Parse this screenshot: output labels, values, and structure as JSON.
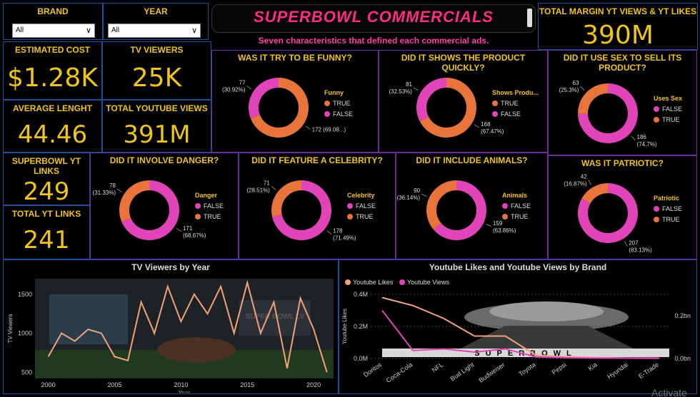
{
  "filters": {
    "brand": {
      "label": "BRAND",
      "value": "All"
    },
    "year": {
      "label": "YEAR",
      "value": "All"
    }
  },
  "title": "SUPERBOWL COMMERCIALS",
  "subtitle": "Seven characteristics that defined each commercial ads.",
  "kpis": {
    "estimated_cost": {
      "label": "ESTIMATED COST",
      "value": "$1.28K"
    },
    "tv_viewers": {
      "label": "TV VIEWERS",
      "value": "25K"
    },
    "average_length": {
      "label": "AVERAGE LENGHT",
      "value": "44.46"
    },
    "total_youtube_views": {
      "label": "TOTAL YOUTUBE VIEWS",
      "value": "391M"
    },
    "superbowl_yt_links": {
      "label": "SUPERBOWL YT LINKS",
      "value": "249"
    },
    "total_yt_links": {
      "label": "TOTAL YT LINKS",
      "value": "241"
    },
    "total_margin": {
      "label": "TOTAL MARGIN YT VIEWS & YT LIKES",
      "value": "390M"
    }
  },
  "colors": {
    "orange": "#e8743b",
    "pink": "#e044b8",
    "gold": "#f0c419",
    "blue": "#1e4f9c",
    "purple": "#6b2a9e"
  },
  "donuts": [
    {
      "id": "funny",
      "title": "WAS IT TRY TO BE FUNNY?",
      "legend_title": "Funny",
      "legend": [
        {
          "label": "TRUE",
          "color": "#e8743b"
        },
        {
          "label": "FALSE",
          "color": "#e044b8"
        }
      ],
      "slices": [
        {
          "value": 172,
          "color": "#e8743b",
          "label_count": "172 (69.08...)",
          "label_pct": ""
        },
        {
          "value": 77,
          "color": "#e044b8",
          "label_count": "77",
          "label_pct": "(30.92%)"
        }
      ]
    },
    {
      "id": "product",
      "title": "DID IT SHOWS THE PRODUCT QUICKLY?",
      "legend_title": "Shows Produ...",
      "legend": [
        {
          "label": "TRUE",
          "color": "#e8743b"
        },
        {
          "label": "FALSE",
          "color": "#e044b8"
        }
      ],
      "slices": [
        {
          "value": 168,
          "color": "#e8743b",
          "label_count": "168",
          "label_pct": "(67.47%)"
        },
        {
          "value": 81,
          "color": "#e044b8",
          "label_count": "81",
          "label_pct": "(32.53%)"
        }
      ]
    },
    {
      "id": "sex",
      "title": "DID IT USE SEX TO SELL ITS PRODUCT?",
      "legend_title": "Uses Sex",
      "legend": [
        {
          "label": "FALSE",
          "color": "#e044b8"
        },
        {
          "label": "TRUE",
          "color": "#e8743b"
        }
      ],
      "slices": [
        {
          "value": 186,
          "color": "#e044b8",
          "label_count": "186",
          "label_pct": "(74.7%)"
        },
        {
          "value": 63,
          "color": "#e8743b",
          "label_count": "63",
          "label_pct": "(25.3%)"
        }
      ]
    },
    {
      "id": "danger",
      "title": "DID IT INVOLVE DANGER?",
      "legend_title": "Danger",
      "legend": [
        {
          "label": "FALSE",
          "color": "#e044b8"
        },
        {
          "label": "TRUE",
          "color": "#e8743b"
        }
      ],
      "slices": [
        {
          "value": 171,
          "color": "#e044b8",
          "label_count": "171",
          "label_pct": "(68.67%)"
        },
        {
          "value": 78,
          "color": "#e8743b",
          "label_count": "78",
          "label_pct": "(31.33%)"
        }
      ]
    },
    {
      "id": "celebrity",
      "title": "DID IT FEATURE A CELEBRITY?",
      "legend_title": "Celebrity",
      "legend": [
        {
          "label": "FALSE",
          "color": "#e044b8"
        },
        {
          "label": "TRUE",
          "color": "#e8743b"
        }
      ],
      "slices": [
        {
          "value": 178,
          "color": "#e044b8",
          "label_count": "178",
          "label_pct": "(71.49%)"
        },
        {
          "value": 71,
          "color": "#e8743b",
          "label_count": "71",
          "label_pct": "(28.51%)"
        }
      ]
    },
    {
      "id": "animals",
      "title": "DID IT INCLUDE ANIMALS?",
      "legend_title": "Animals",
      "legend": [
        {
          "label": "FALSE",
          "color": "#e044b8"
        },
        {
          "label": "TRUE",
          "color": "#e8743b"
        }
      ],
      "slices": [
        {
          "value": 159,
          "color": "#e044b8",
          "label_count": "159",
          "label_pct": "(63.86%)"
        },
        {
          "value": 90,
          "color": "#e8743b",
          "label_count": "90",
          "label_pct": "(36.14%)"
        }
      ]
    },
    {
      "id": "patriotic",
      "title": "WAS IT PATRIOTIC?",
      "legend_title": "Patriotic",
      "legend": [
        {
          "label": "FALSE",
          "color": "#e044b8"
        },
        {
          "label": "TRUE",
          "color": "#e8743b"
        }
      ],
      "slices": [
        {
          "value": 207,
          "color": "#e044b8",
          "label_count": "207",
          "label_pct": "(83.13%)"
        },
        {
          "value": 42,
          "color": "#e8743b",
          "label_count": "42",
          "label_pct": "(16.87%)"
        }
      ]
    }
  ],
  "chart_data": [
    {
      "type": "line",
      "title": "TV Viewers by Year",
      "xlabel": "Year",
      "ylabel": "TV Viewers",
      "xlim": [
        1999,
        2021.5
      ],
      "ylim": [
        420,
        1700
      ],
      "xticks": [
        2000,
        2005,
        2010,
        2015,
        2020
      ],
      "yticks": [
        500,
        1000,
        1500
      ],
      "background_text": "SUPER BOWL LV",
      "series": [
        {
          "name": "TV Viewers",
          "color": "#f4a07a",
          "x": [
            2000,
            2001,
            2002,
            2003,
            2004,
            2005,
            2006,
            2007,
            2008,
            2009,
            2010,
            2011,
            2012,
            2013,
            2014,
            2015,
            2016,
            2017,
            2018,
            2019,
            2020,
            2021
          ],
          "y": [
            700,
            1000,
            900,
            1050,
            1000,
            700,
            650,
            1400,
            1000,
            1600,
            1150,
            1500,
            1250,
            1600,
            1000,
            1650,
            1000,
            1400,
            550,
            1450,
            1050,
            500
          ]
        }
      ]
    },
    {
      "type": "line",
      "title": "Youtube Likes and Youtube Views by Brand",
      "ylabel": "Youtube Likes",
      "categories": [
        "Doritos",
        "Coca-Cola",
        "NFL",
        "Bud Light",
        "Budweiser",
        "Toyota",
        "Pepsi",
        "Kia",
        "Hyundai",
        "E-Trade"
      ],
      "ylim": [
        0,
        0.4
      ],
      "yticks": [
        "0.0M",
        "0.2M",
        "0.4M"
      ],
      "y2ticks": [
        "0.0bn",
        "0.2bn"
      ],
      "background_text": "SUPERBOWL",
      "series": [
        {
          "name": "Youtube Likes",
          "color": "#f4a07a",
          "values": [
            0.38,
            0.33,
            0.25,
            0.14,
            0.14,
            0.02,
            0.01,
            0.005,
            0.003,
            0.002
          ]
        },
        {
          "name": "Youtube Views",
          "color": "#e044b8",
          "values": [
            0.3,
            0.05,
            0.06,
            0.04,
            0.06,
            0.01,
            0.005,
            0.003,
            0.002,
            0.001
          ]
        }
      ]
    }
  ],
  "watermark": "Activate"
}
